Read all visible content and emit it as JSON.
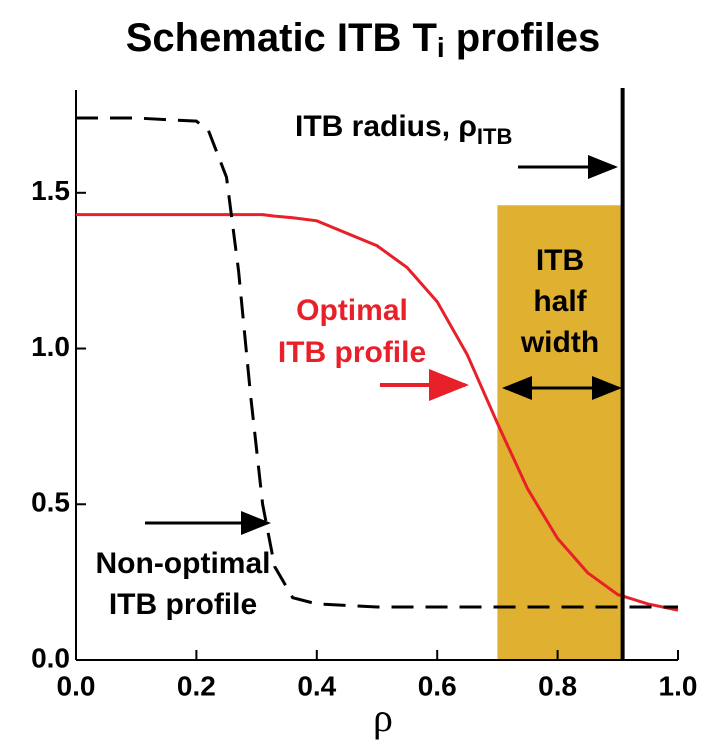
{
  "chart_data": {
    "type": "line",
    "title": "Schematic ITB T",
    "title_subscript": "i",
    "title_suffix": " profiles",
    "xlabel": "ρ",
    "x": [
      0,
      0.1,
      0.2,
      0.22,
      0.25,
      0.27,
      0.29,
      0.31,
      0.33,
      0.36,
      0.4,
      0.5,
      0.55,
      0.6,
      0.65,
      0.7,
      0.75,
      0.8,
      0.85,
      0.9,
      0.95,
      1.0
    ],
    "series": [
      {
        "name": "Optimal ITB profile",
        "color": "#e8202a",
        "dash": false,
        "values": [
          1.43,
          1.43,
          1.43,
          1.43,
          1.43,
          1.43,
          1.43,
          1.43,
          1.425,
          1.42,
          1.41,
          1.33,
          1.26,
          1.15,
          0.98,
          0.76,
          0.55,
          0.39,
          0.28,
          0.21,
          0.18,
          0.16
        ]
      },
      {
        "name": "Non-optimal ITB profile",
        "color": "#000000",
        "dash": true,
        "values": [
          1.74,
          1.74,
          1.73,
          1.7,
          1.55,
          1.25,
          0.85,
          0.5,
          0.3,
          0.2,
          0.18,
          0.17,
          0.17,
          0.17,
          0.17,
          0.17,
          0.17,
          0.17,
          0.17,
          0.17,
          0.17,
          0.17
        ]
      }
    ],
    "band": {
      "xlim": [
        0.7,
        0.908
      ],
      "ylim": [
        0,
        1.46
      ],
      "color": "#e0b030"
    },
    "itb_radius": 0.908,
    "annotations": {
      "radius": "ITB radius, ρ",
      "radius_subscript": "ITB",
      "half_width": [
        "ITB",
        "half",
        "width"
      ],
      "optimal": [
        "Optimal",
        "ITB profile"
      ],
      "non_optimal": [
        "Non-optimal",
        "ITB profile"
      ]
    },
    "xlim": [
      0,
      1.0
    ],
    "ylim": [
      0,
      1.83
    ],
    "xticks": [
      {
        "value": 0,
        "label": "0.0"
      },
      {
        "value": 0.2,
        "label": "0.2"
      },
      {
        "value": 0.4,
        "label": "0.4"
      },
      {
        "value": 0.6,
        "label": "0.6"
      },
      {
        "value": 0.8,
        "label": "0.8"
      },
      {
        "value": 1.0,
        "label": "1.0"
      }
    ],
    "yticks": [
      {
        "value": 0,
        "label": "0.0"
      },
      {
        "value": 0.5,
        "label": "0.5"
      },
      {
        "value": 1.0,
        "label": "1.0"
      },
      {
        "value": 1.5,
        "label": "1.5"
      }
    ]
  }
}
